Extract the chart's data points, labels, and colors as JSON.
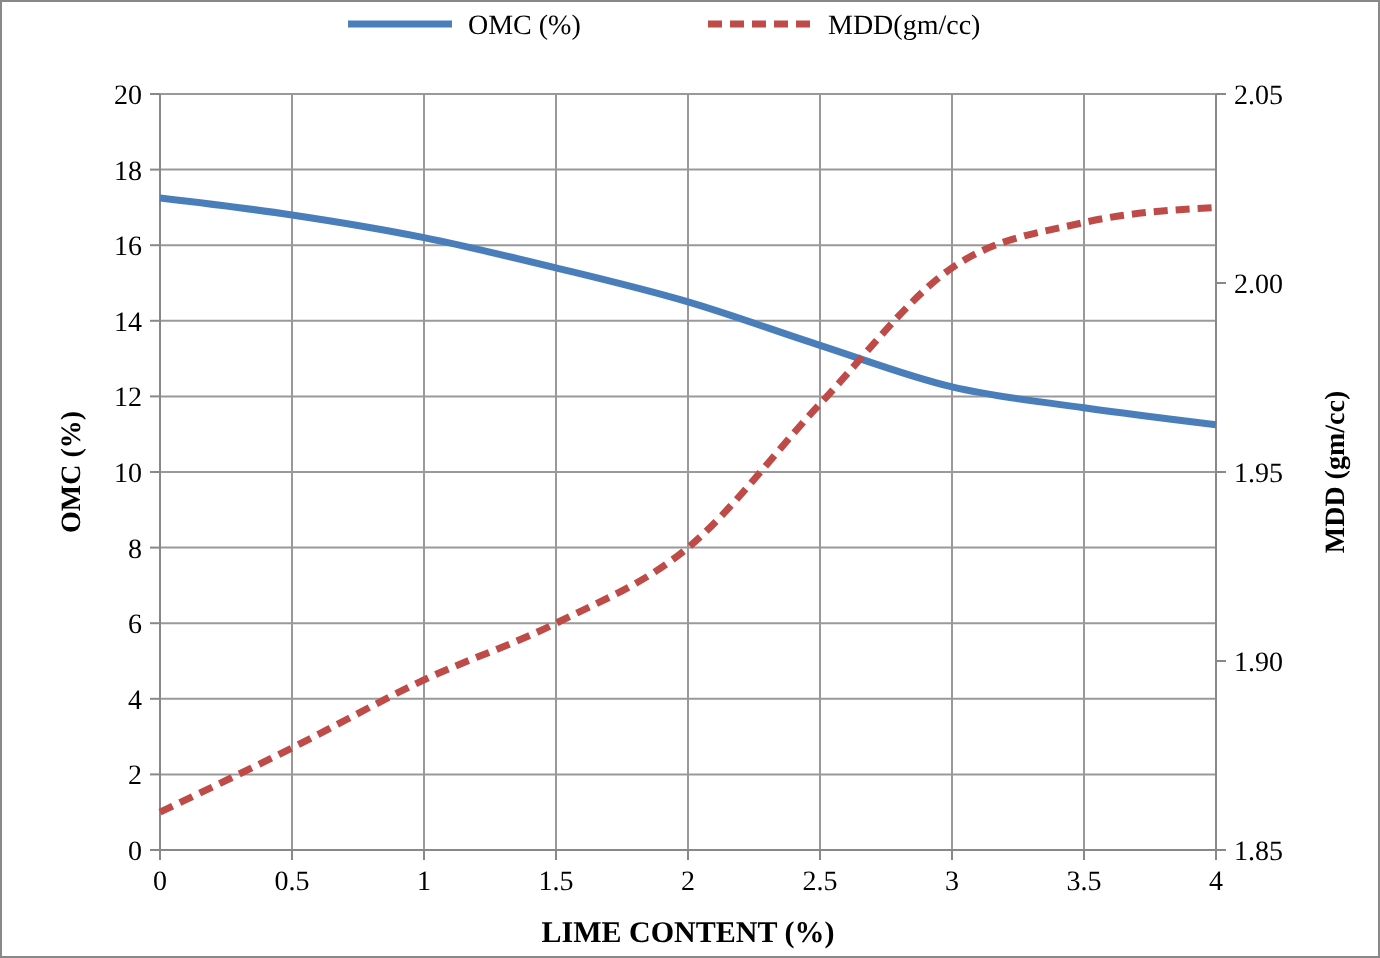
{
  "chart_data": {
    "type": "line",
    "xlabel": "LIME CONTENT (%)",
    "ylabel": "OMC (%)",
    "y2label": "MDD (gm/cc)",
    "x": [
      0,
      0.5,
      1,
      1.5,
      2,
      2.5,
      3,
      3.5,
      4
    ],
    "series": [
      {
        "name": "OMC (%)",
        "color": "#4a7ebb",
        "values": [
          17.25,
          16.8,
          16.2,
          15.4,
          14.5,
          13.35,
          12.25,
          11.7,
          11.25
        ],
        "line_style": "solid"
      },
      {
        "name": "MDD(gm/cc)",
        "color": "#be4b48",
        "values": [
          1.86,
          1.877,
          1.895,
          1.91,
          1.93,
          1.968,
          2.004,
          2.016,
          2.02
        ],
        "axis": "y2",
        "line_style": "dashed"
      }
    ],
    "xlim": [
      0,
      4
    ],
    "xticks": [
      0,
      0.5,
      1,
      1.5,
      2,
      2.5,
      3,
      3.5,
      4
    ],
    "ylim": [
      0,
      20
    ],
    "yticks": [
      0,
      2,
      4,
      6,
      8,
      10,
      12,
      14,
      16,
      18,
      20
    ],
    "y2lim": [
      1.85,
      2.05
    ],
    "y2ticks": [
      {
        "value": 1.85,
        "label": "1.85"
      },
      {
        "value": 1.9,
        "label": "1.90"
      },
      {
        "value": 1.95,
        "label": "1.95"
      },
      {
        "value": 2,
        "label": "2.00"
      },
      {
        "value": 2.05,
        "label": "2.05"
      }
    ],
    "grid": true,
    "legend": "top",
    "marker": "none"
  }
}
